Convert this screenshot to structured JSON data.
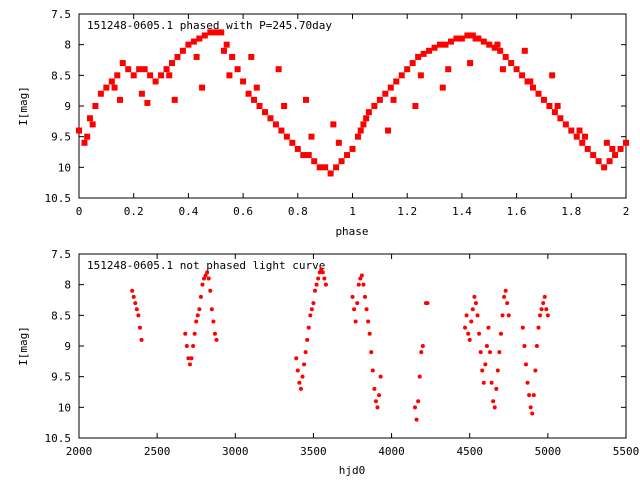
{
  "chart_data": [
    {
      "type": "scatter",
      "title": "151248-0605.1 phased with P=245.70day",
      "xlabel": "phase",
      "ylabel": "I[mag]",
      "xlim": [
        0,
        2
      ],
      "ylim": [
        10.5,
        7.5
      ],
      "y_inverted": true,
      "x_ticks": [
        0,
        0.2,
        0.4,
        0.6,
        0.8,
        1,
        1.2,
        1.4,
        1.6,
        1.8,
        2
      ],
      "x_tick_labels": [
        "0",
        "0.2",
        "0.4",
        "0.6",
        "0.8",
        "1",
        "1.2",
        "1.4",
        "1.6",
        "1.8",
        "2"
      ],
      "y_ticks": [
        7.5,
        8,
        8.5,
        9,
        9.5,
        10,
        10.5
      ],
      "y_tick_labels": [
        "7.5",
        "8",
        "8.5",
        "9",
        "9.5",
        "10",
        "10.5"
      ],
      "marker": "filled-square",
      "color": "#ff0000",
      "series": [
        {
          "name": "phased",
          "x": [
            0.0,
            0.02,
            0.04,
            0.06,
            0.08,
            0.1,
            0.12,
            0.14,
            0.16,
            0.18,
            0.2,
            0.22,
            0.24,
            0.26,
            0.28,
            0.3,
            0.32,
            0.34,
            0.36,
            0.38,
            0.4,
            0.42,
            0.44,
            0.46,
            0.48,
            0.5,
            0.52,
            0.54,
            0.56,
            0.58,
            0.6,
            0.62,
            0.64,
            0.66,
            0.68,
            0.7,
            0.72,
            0.74,
            0.76,
            0.78,
            0.8,
            0.82,
            0.84,
            0.86,
            0.88,
            0.9,
            0.92,
            0.94,
            0.96,
            0.98,
            1.0,
            1.02,
            1.04,
            1.06,
            1.08,
            1.1,
            1.12,
            1.14,
            1.16,
            1.18,
            1.2,
            1.22,
            1.24,
            1.26,
            1.28,
            1.3,
            1.32,
            1.34,
            1.36,
            1.38,
            1.4,
            1.42,
            1.44,
            1.46,
            1.48,
            1.5,
            1.52,
            1.54,
            1.56,
            1.58,
            1.6,
            1.62,
            1.64,
            1.66,
            1.68,
            1.7,
            1.72,
            1.74,
            1.76,
            1.78,
            1.8,
            1.82,
            1.84,
            1.86,
            1.88,
            1.9,
            1.92,
            1.94,
            1.96,
            1.98,
            2.0,
            0.05,
            0.15,
            0.25,
            0.35,
            0.45,
            0.55,
            0.65,
            0.75,
            0.85,
            0.95,
            1.05,
            1.15,
            1.25,
            1.35,
            1.45,
            1.55,
            1.65,
            1.75,
            1.85,
            1.95,
            0.03,
            0.13,
            0.23,
            0.33,
            0.43,
            0.53,
            0.63,
            0.73,
            0.83,
            0.93,
            1.03,
            1.13,
            1.23,
            1.33,
            1.43,
            1.53,
            1.63,
            1.73,
            1.83,
            1.93
          ],
          "y": [
            9.4,
            9.6,
            9.2,
            9.0,
            8.8,
            8.7,
            8.6,
            8.5,
            8.3,
            8.4,
            8.5,
            8.4,
            8.4,
            8.5,
            8.6,
            8.5,
            8.4,
            8.3,
            8.2,
            8.1,
            8.0,
            7.95,
            7.9,
            7.85,
            7.8,
            7.8,
            7.8,
            8.0,
            8.2,
            8.4,
            8.6,
            8.8,
            8.9,
            9.0,
            9.1,
            9.2,
            9.3,
            9.4,
            9.5,
            9.6,
            9.7,
            9.8,
            9.8,
            9.9,
            10.0,
            10.0,
            10.1,
            10.0,
            9.9,
            9.8,
            9.7,
            9.5,
            9.3,
            9.1,
            9.0,
            8.9,
            8.8,
            8.7,
            8.6,
            8.5,
            8.4,
            8.3,
            8.2,
            8.15,
            8.1,
            8.05,
            8.0,
            8.0,
            7.95,
            7.9,
            7.9,
            7.85,
            7.85,
            7.9,
            7.95,
            8.0,
            8.05,
            8.1,
            8.2,
            8.3,
            8.4,
            8.5,
            8.6,
            8.7,
            8.8,
            8.9,
            9.0,
            9.1,
            9.2,
            9.3,
            9.4,
            9.5,
            9.6,
            9.7,
            9.8,
            9.9,
            10.0,
            9.9,
            9.8,
            9.7,
            9.6,
            9.3,
            8.9,
            8.95,
            8.9,
            8.7,
            8.5,
            8.7,
            9.0,
            9.5,
            9.6,
            9.2,
            8.9,
            8.5,
            8.4,
            7.9,
            8.4,
            8.6,
            9.0,
            9.5,
            9.7,
            9.5,
            8.7,
            8.8,
            8.5,
            8.2,
            8.1,
            8.2,
            8.4,
            8.9,
            9.3,
            9.4,
            9.4,
            9.0,
            8.7,
            8.3,
            8.0,
            8.1,
            8.5,
            9.4,
            9.6
          ]
        }
      ]
    },
    {
      "type": "scatter",
      "title": "151248-0605.1 not phased light curve",
      "xlabel": "hjd0",
      "ylabel": "I[mag]",
      "xlim": [
        2000,
        5500
      ],
      "ylim": [
        10.5,
        7.5
      ],
      "y_inverted": true,
      "x_ticks": [
        2000,
        2500,
        3000,
        3500,
        4000,
        4500,
        5000,
        5500
      ],
      "x_tick_labels": [
        "2000",
        "2500",
        "3000",
        "3500",
        "4000",
        "4500",
        "5000",
        "5500"
      ],
      "y_ticks": [
        7.5,
        8,
        8.5,
        9,
        9.5,
        10,
        10.5
      ],
      "y_tick_labels": [
        "7.5",
        "8",
        "8.5",
        "9",
        "9.5",
        "10",
        "10.5"
      ],
      "marker": "dot",
      "color": "#ff0000",
      "series": [
        {
          "name": "light curve",
          "x": [
            2340,
            2350,
            2360,
            2370,
            2380,
            2390,
            2400,
            2680,
            2690,
            2700,
            2710,
            2720,
            2730,
            2740,
            2750,
            2760,
            2770,
            2780,
            2790,
            2800,
            2810,
            2820,
            2830,
            2840,
            2850,
            2860,
            2870,
            2880,
            3390,
            3400,
            3410,
            3420,
            3430,
            3440,
            3450,
            3460,
            3470,
            3480,
            3490,
            3500,
            3510,
            3520,
            3530,
            3540,
            3550,
            3560,
            3570,
            3580,
            3750,
            3760,
            3770,
            3780,
            3790,
            3800,
            3810,
            3820,
            3830,
            3840,
            3850,
            3860,
            3870,
            3880,
            3890,
            3900,
            3910,
            3920,
            3930,
            4150,
            4160,
            4170,
            4180,
            4190,
            4200,
            4220,
            4230,
            4470,
            4480,
            4490,
            4500,
            4510,
            4520,
            4530,
            4540,
            4550,
            4560,
            4570,
            4580,
            4590,
            4600,
            4610,
            4620,
            4630,
            4640,
            4650,
            4660,
            4670,
            4680,
            4690,
            4700,
            4710,
            4720,
            4730,
            4740,
            4750,
            4840,
            4850,
            4860,
            4870,
            4880,
            4890,
            4900,
            4910,
            4920,
            4930,
            4940,
            4950,
            4960,
            4970,
            4980,
            4990,
            5000
          ],
          "y": [
            8.1,
            8.2,
            8.3,
            8.4,
            8.5,
            8.7,
            8.9,
            8.8,
            9.0,
            9.2,
            9.3,
            9.2,
            9.0,
            8.8,
            8.6,
            8.5,
            8.4,
            8.2,
            8.0,
            7.9,
            7.85,
            7.8,
            7.9,
            8.1,
            8.4,
            8.6,
            8.8,
            8.9,
            9.2,
            9.4,
            9.6,
            9.7,
            9.5,
            9.3,
            9.1,
            8.9,
            8.7,
            8.5,
            8.4,
            8.3,
            8.1,
            8.0,
            7.9,
            7.8,
            7.75,
            7.8,
            7.9,
            8.0,
            8.2,
            8.4,
            8.6,
            8.3,
            8.0,
            7.9,
            7.85,
            8.0,
            8.2,
            8.4,
            8.6,
            8.8,
            9.1,
            9.4,
            9.7,
            9.9,
            10.0,
            9.8,
            9.5,
            10.0,
            10.2,
            9.9,
            9.5,
            9.1,
            9.0,
            8.3,
            8.3,
            8.7,
            8.5,
            8.8,
            8.9,
            8.6,
            8.4,
            8.2,
            8.3,
            8.5,
            8.8,
            9.1,
            9.4,
            9.6,
            9.3,
            9.0,
            8.7,
            9.1,
            9.6,
            9.9,
            10.0,
            9.7,
            9.4,
            9.1,
            8.8,
            8.5,
            8.2,
            8.1,
            8.3,
            8.5,
            8.7,
            9.0,
            9.3,
            9.6,
            9.8,
            10.0,
            10.1,
            9.8,
            9.4,
            9.0,
            8.7,
            8.5,
            8.4,
            8.3,
            8.2,
            8.4,
            8.5
          ]
        }
      ]
    }
  ]
}
